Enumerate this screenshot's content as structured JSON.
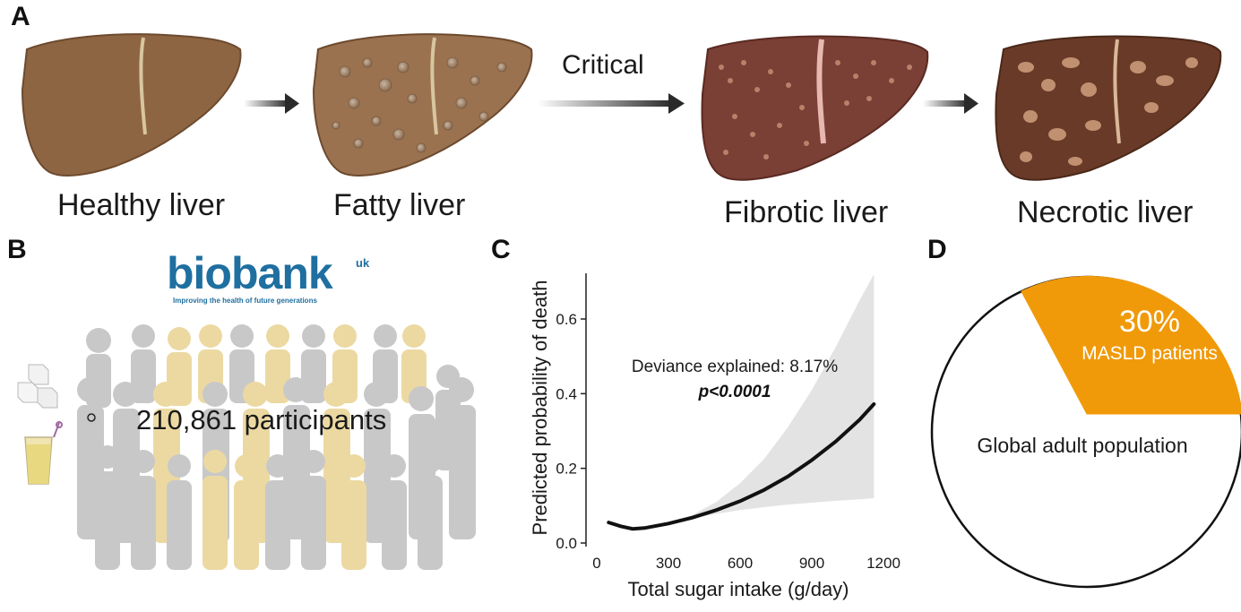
{
  "panels": {
    "a": "A",
    "b": "B",
    "c": "C",
    "d": "D"
  },
  "panel_a": {
    "stages": [
      {
        "label": "Healthy liver",
        "icon": "healthy-liver-icon"
      },
      {
        "label": "Fatty liver",
        "icon": "fatty-liver-icon"
      },
      {
        "label": "Fibrotic liver",
        "icon": "fibrotic-liver-icon"
      },
      {
        "label": "Necrotic liver",
        "icon": "necrotic-liver-icon"
      }
    ],
    "transition_label": "Critical",
    "colors": {
      "healthy": "#8e6542",
      "fatty": "#9a7250",
      "fibrotic": "#7a3f35",
      "necrotic": "#6a3a28"
    }
  },
  "panel_b": {
    "logo_word": "biobank",
    "logo_superscript": "uk",
    "logo_tagline": "Improving the health of future generations",
    "participants": "210,861 participants",
    "icons": [
      "sugar-cubes-icon",
      "juice-glass-icon",
      "crowd-silhouettes"
    ],
    "colors": {
      "brand": "#1f6fa0",
      "crowd_grey": "#c8c8c8",
      "crowd_yellow": "#ecd9a2"
    }
  },
  "chart_data": [
    {
      "type": "line",
      "xlabel": "Total sugar intake (g/day)",
      "ylabel": "Predicted probability of death",
      "x_ticks": [
        "0",
        "300",
        "600",
        "900",
        "1200"
      ],
      "y_ticks": [
        "0.0",
        "0.2",
        "0.4",
        "0.6"
      ],
      "xlim": [
        0,
        1200
      ],
      "ylim": [
        0,
        0.72
      ],
      "series": [
        {
          "x": [
            50,
            100,
            150,
            200,
            300,
            400,
            500,
            600,
            700,
            800,
            900,
            1000,
            1100,
            1160
          ],
          "y": [
            0.055,
            0.045,
            0.038,
            0.04,
            0.052,
            0.068,
            0.088,
            0.112,
            0.142,
            0.178,
            0.222,
            0.272,
            0.33,
            0.372
          ],
          "lower": [
            0.055,
            0.045,
            0.038,
            0.04,
            0.052,
            0.066,
            0.078,
            0.088,
            0.096,
            0.103,
            0.108,
            0.113,
            0.117,
            0.12
          ],
          "upper": [
            0.055,
            0.045,
            0.038,
            0.04,
            0.053,
            0.075,
            0.11,
            0.16,
            0.225,
            0.31,
            0.41,
            0.525,
            0.65,
            0.72
          ]
        }
      ],
      "annotations": {
        "deviance": "Deviance explained: 8.17%",
        "p_value": "p<0.0001"
      },
      "colors": {
        "line": "#111111",
        "band": "#e3e3e3"
      }
    },
    {
      "type": "pie",
      "slices": [
        {
          "label": "MASLD patients",
          "value": 30,
          "value_label": "30%",
          "color": "#f09a0a"
        },
        {
          "label": "Global adult population",
          "value": 70,
          "color": "#ffffff"
        }
      ]
    }
  ]
}
